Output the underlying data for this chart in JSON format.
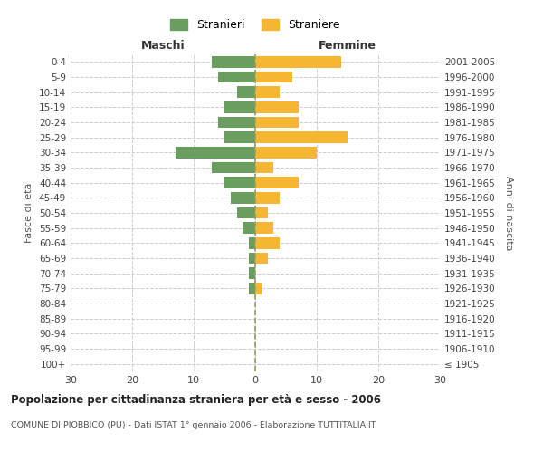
{
  "age_groups": [
    "100+",
    "95-99",
    "90-94",
    "85-89",
    "80-84",
    "75-79",
    "70-74",
    "65-69",
    "60-64",
    "55-59",
    "50-54",
    "45-49",
    "40-44",
    "35-39",
    "30-34",
    "25-29",
    "20-24",
    "15-19",
    "10-14",
    "5-9",
    "0-4"
  ],
  "birth_years": [
    "≤ 1905",
    "1906-1910",
    "1911-1915",
    "1916-1920",
    "1921-1925",
    "1926-1930",
    "1931-1935",
    "1936-1940",
    "1941-1945",
    "1946-1950",
    "1951-1955",
    "1956-1960",
    "1961-1965",
    "1966-1970",
    "1971-1975",
    "1976-1980",
    "1981-1985",
    "1986-1990",
    "1991-1995",
    "1996-2000",
    "2001-2005"
  ],
  "males": [
    0,
    0,
    0,
    0,
    0,
    1,
    1,
    1,
    1,
    2,
    3,
    4,
    5,
    7,
    13,
    5,
    6,
    5,
    3,
    6,
    7
  ],
  "females": [
    0,
    0,
    0,
    0,
    0,
    1,
    0,
    2,
    4,
    3,
    2,
    4,
    7,
    3,
    10,
    15,
    7,
    7,
    4,
    6,
    14
  ],
  "male_color": "#6a9e5e",
  "female_color": "#f5b731",
  "background_color": "#ffffff",
  "grid_color": "#cccccc",
  "title": "Popolazione per cittadinanza straniera per età e sesso - 2006",
  "subtitle": "COMUNE DI PIOBBICO (PU) - Dati ISTAT 1° gennaio 2006 - Elaborazione TUTTITALIA.IT",
  "xlabel_left": "Maschi",
  "xlabel_right": "Femmine",
  "ylabel_left": "Fasce di età",
  "ylabel_right": "Anni di nascita",
  "legend_male": "Stranieri",
  "legend_female": "Straniere",
  "xlim": 30,
  "bar_height": 0.75
}
